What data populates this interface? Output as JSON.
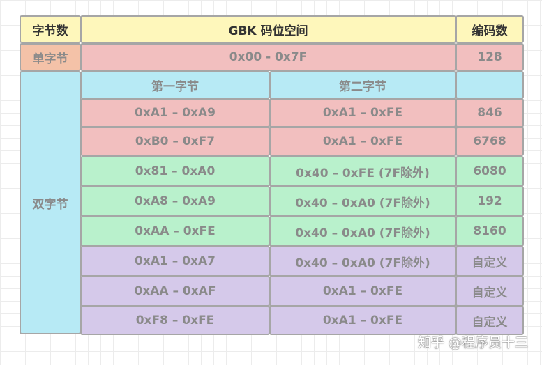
{
  "header": {
    "col1": "字节数",
    "col2": "GBK 码位空间",
    "col3": "编码数"
  },
  "single_byte": {
    "label": "单字节",
    "range": "0x00 - 0x7F",
    "count": "128"
  },
  "double_byte": {
    "label": "双字节",
    "sub_header": {
      "first": "第一字节",
      "second": "第二字节",
      "count": ""
    },
    "rows": [
      {
        "first": "0xA1 – 0xA9",
        "second": "0xA1 – 0xFE",
        "count": "846"
      },
      {
        "first": "0xB0 – 0xF7",
        "second": "0xA1 – 0xFE",
        "count": "6768"
      },
      {
        "first": "0x81 – 0xA0",
        "second": "0x40 – 0xFE (7F除外)",
        "count": "6080"
      },
      {
        "first": "0xA8 – 0xA9",
        "second": "0x40 – 0xA0 (7F除外)",
        "count": "192"
      },
      {
        "first": "0xAA – 0xFE",
        "second": "0x40 – 0xA0 (7F除外)",
        "count": "8160"
      },
      {
        "first": "0xA1 – 0xA7",
        "second": "0x40 – 0xA0 (7F除外)",
        "count": "自定义"
      },
      {
        "first": "0xAA – 0xAF",
        "second": "0xA1 – 0xFE",
        "count": "自定义"
      },
      {
        "first": "0xF8 – 0xFE",
        "second": "0xA1 – 0xFE",
        "count": "自定义"
      }
    ]
  },
  "watermark": "知乎 @程序员十三",
  "colors": {
    "header": "#fef7bb",
    "single_label": "#f4c2a8",
    "single_row": "#f2bfbf",
    "double_label": "#b7eaf5",
    "pink_rows": "#f2bfbf",
    "green_rows": "#b9f1cc",
    "purple_rows": "#d5c9ea"
  }
}
